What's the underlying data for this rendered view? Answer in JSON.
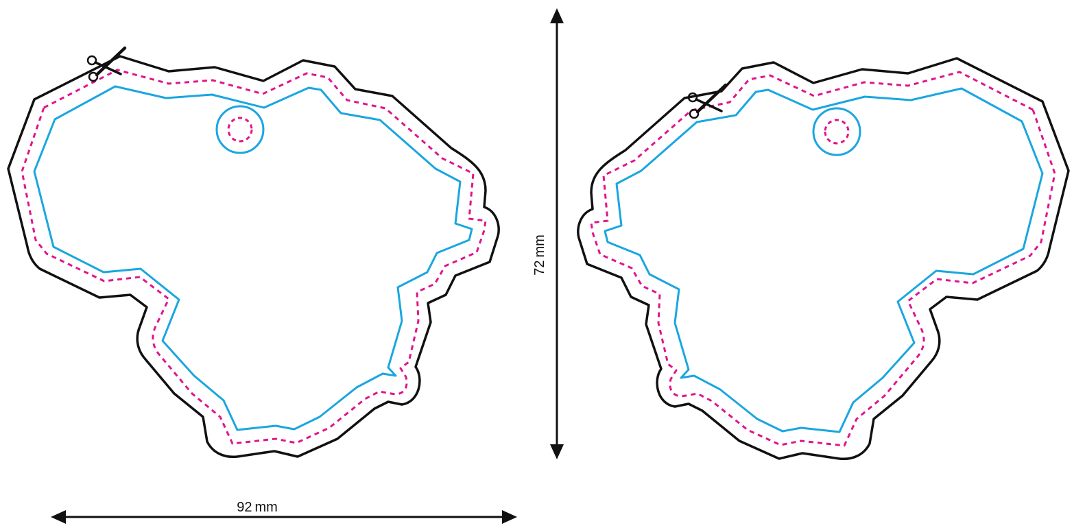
{
  "dimensions": {
    "width_label": "92 mm",
    "height_label": "72 mm"
  },
  "icons": {
    "cut_marker": "scissors-icon"
  },
  "colors": {
    "cut_line": "#111111",
    "safe_line": "#1aa6e0",
    "bleed_line": "#e0148c",
    "arrow": "#111111"
  }
}
